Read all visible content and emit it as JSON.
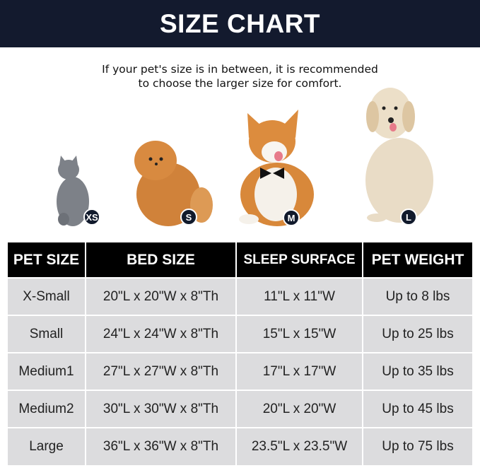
{
  "header": {
    "title": "SIZE CHART"
  },
  "note": {
    "line1": "If your pet's size is in between, it is recommended",
    "line2": "to choose the larger size for comfort."
  },
  "pets": [
    {
      "animal": "cat",
      "badge": "XS"
    },
    {
      "animal": "pomeranian",
      "badge": "S"
    },
    {
      "animal": "corgi",
      "badge": "M"
    },
    {
      "animal": "golden-retriever",
      "badge": "L"
    }
  ],
  "table": {
    "headers": [
      "PET SIZE",
      "BED SIZE",
      "SLEEP SURFACE",
      "PET WEIGHT"
    ],
    "rows": [
      [
        "X-Small",
        "20\"L x 20\"W x 8\"Th",
        "11\"L x 11\"W",
        "Up to 8 lbs"
      ],
      [
        "Small",
        "24\"L x 24\"W x 8\"Th",
        "15\"L x 15\"W",
        "Up to 25 lbs"
      ],
      [
        "Medium1",
        "27\"L x 27\"W x 8\"Th",
        "17\"L x 17\"W",
        "Up to 35 lbs"
      ],
      [
        "Medium2",
        "30\"L x 30\"W x 8\"Th",
        "20\"L x 20\"W",
        "Up to 45 lbs"
      ],
      [
        "Large",
        "36\"L x 36\"W x 8\"Th",
        "23.5\"L x 23.5\"W",
        "Up to 75 lbs"
      ]
    ]
  },
  "colors": {
    "header_bg": "#131a2e",
    "table_header_bg": "#000000",
    "row_bg": "#dcdcde",
    "badge_bg": "#111a2c"
  }
}
